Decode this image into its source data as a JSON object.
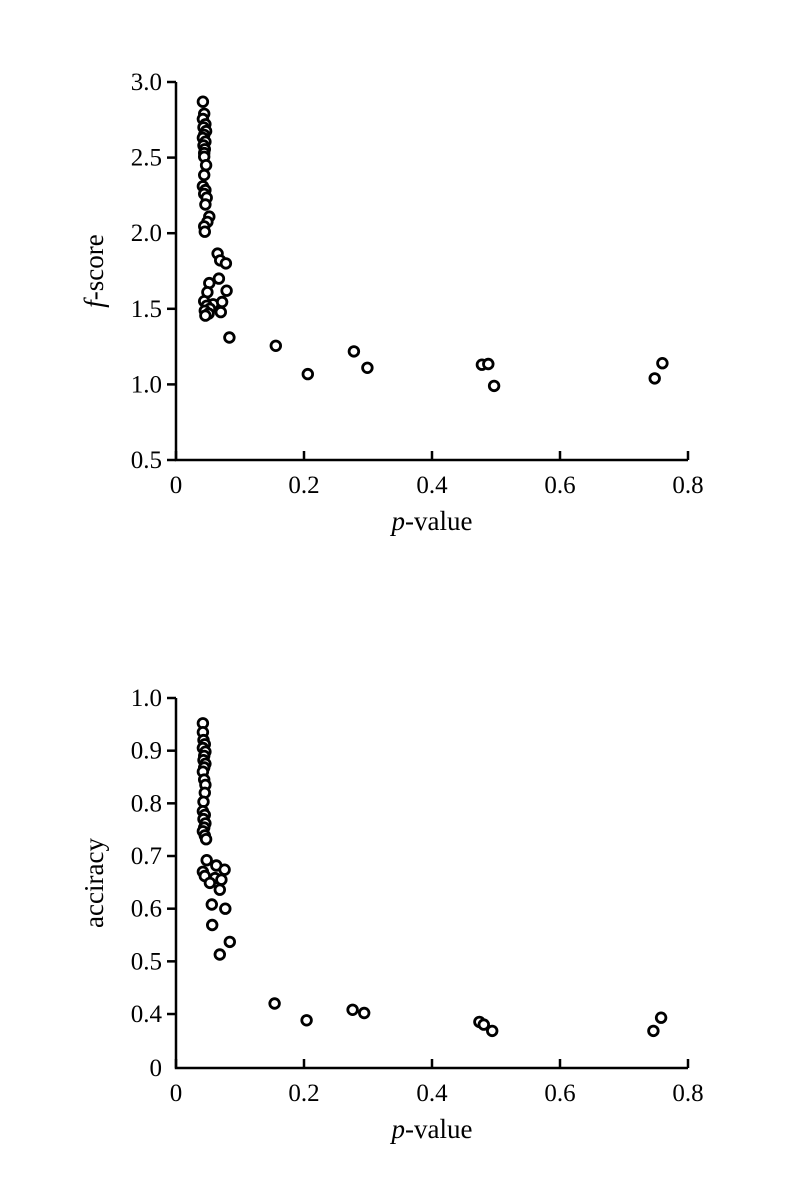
{
  "figure": {
    "background_color": "#ffffff",
    "marker_color": "#000000",
    "axis_color": "#000000"
  },
  "chart_data": [
    {
      "type": "scatter",
      "title": "",
      "xlabel": "p-value",
      "ylabel": "f-score",
      "xlim": [
        0,
        0.8
      ],
      "ylim": [
        0.5,
        3.0
      ],
      "x_tick_labels": [
        "0",
        "0.2",
        "0.4",
        "0.6",
        "0.8"
      ],
      "x_tick_values": [
        0,
        0.2,
        0.4,
        0.6,
        0.8
      ],
      "y_tick_labels": [
        "3.0",
        "2.5",
        "2.0",
        "1.5",
        "1.0",
        "0.5"
      ],
      "y_tick_values": [
        3.0,
        2.5,
        2.0,
        1.5,
        1.0,
        0.5
      ],
      "grid": false,
      "legend": "none",
      "marker": "open-circle",
      "points": [
        [
          0.042,
          2.87
        ],
        [
          0.044,
          2.79
        ],
        [
          0.042,
          2.755
        ],
        [
          0.046,
          2.72
        ],
        [
          0.043,
          2.7
        ],
        [
          0.047,
          2.675
        ],
        [
          0.044,
          2.65
        ],
        [
          0.042,
          2.63
        ],
        [
          0.046,
          2.605
        ],
        [
          0.043,
          2.58
        ],
        [
          0.045,
          2.555
        ],
        [
          0.044,
          2.53
        ],
        [
          0.044,
          2.505
        ],
        [
          0.047,
          2.45
        ],
        [
          0.044,
          2.385
        ],
        [
          0.042,
          2.31
        ],
        [
          0.046,
          2.285
        ],
        [
          0.044,
          2.26
        ],
        [
          0.048,
          2.235
        ],
        [
          0.046,
          2.19
        ],
        [
          0.052,
          2.11
        ],
        [
          0.049,
          2.075
        ],
        [
          0.044,
          2.045
        ],
        [
          0.045,
          2.01
        ],
        [
          0.065,
          1.865
        ],
        [
          0.069,
          1.82
        ],
        [
          0.078,
          1.8
        ],
        [
          0.067,
          1.7
        ],
        [
          0.052,
          1.67
        ],
        [
          0.079,
          1.62
        ],
        [
          0.049,
          1.61
        ],
        [
          0.058,
          1.53
        ],
        [
          0.072,
          1.545
        ],
        [
          0.044,
          1.55
        ],
        [
          0.048,
          1.52
        ],
        [
          0.053,
          1.5
        ],
        [
          0.045,
          1.487
        ],
        [
          0.051,
          1.468
        ],
        [
          0.07,
          1.478
        ],
        [
          0.046,
          1.455
        ],
        [
          0.0835,
          1.31
        ],
        [
          0.156,
          1.255
        ],
        [
          0.206,
          1.068
        ],
        [
          0.278,
          1.218
        ],
        [
          0.299,
          1.11
        ],
        [
          0.478,
          1.13
        ],
        [
          0.488,
          1.135
        ],
        [
          0.497,
          0.99
        ],
        [
          0.748,
          1.04
        ],
        [
          0.76,
          1.14
        ]
      ]
    },
    {
      "type": "scatter",
      "title": "",
      "xlabel": "p-value",
      "ylabel": "acciracy",
      "xlim": [
        0,
        0.8
      ],
      "ylim": [
        0.4,
        1.0
      ],
      "x_tick_labels": [
        "0",
        "0.2",
        "0.4",
        "0.6",
        "0.8"
      ],
      "x_tick_values": [
        0,
        0.2,
        0.4,
        0.6,
        0.8
      ],
      "y_tick_labels": [
        "1.0",
        "0.9",
        "0.8",
        "0.7",
        "0.6",
        "0.5",
        "0.4"
      ],
      "y_tick_values": [
        1.0,
        0.9,
        0.8,
        0.7,
        0.6,
        0.5,
        0.4
      ],
      "y_axis_origin_label": "0",
      "grid": false,
      "legend": "none",
      "marker": "open-circle",
      "points": [
        [
          0.042,
          0.952
        ],
        [
          0.042,
          0.935
        ],
        [
          0.043,
          0.92
        ],
        [
          0.045,
          0.912
        ],
        [
          0.042,
          0.905
        ],
        [
          0.046,
          0.898
        ],
        [
          0.044,
          0.89
        ],
        [
          0.043,
          0.882
        ],
        [
          0.046,
          0.875
        ],
        [
          0.044,
          0.868
        ],
        [
          0.042,
          0.86
        ],
        [
          0.044,
          0.845
        ],
        [
          0.046,
          0.835
        ],
        [
          0.045,
          0.82
        ],
        [
          0.043,
          0.803
        ],
        [
          0.042,
          0.785
        ],
        [
          0.045,
          0.778
        ],
        [
          0.043,
          0.77
        ],
        [
          0.046,
          0.762
        ],
        [
          0.044,
          0.754
        ],
        [
          0.042,
          0.747
        ],
        [
          0.045,
          0.739
        ],
        [
          0.047,
          0.732
        ],
        [
          0.048,
          0.692
        ],
        [
          0.063,
          0.682
        ],
        [
          0.076,
          0.674
        ],
        [
          0.042,
          0.67
        ],
        [
          0.045,
          0.662
        ],
        [
          0.061,
          0.658
        ],
        [
          0.071,
          0.655
        ],
        [
          0.053,
          0.649
        ],
        [
          0.0685,
          0.636
        ],
        [
          0.056,
          0.608
        ],
        [
          0.077,
          0.6
        ],
        [
          0.0565,
          0.569
        ],
        [
          0.084,
          0.537
        ],
        [
          0.0685,
          0.513
        ],
        [
          0.154,
          0.42
        ],
        [
          0.204,
          0.388
        ],
        [
          0.276,
          0.408
        ],
        [
          0.294,
          0.402
        ],
        [
          0.474,
          0.385
        ],
        [
          0.481,
          0.38
        ],
        [
          0.494,
          0.368
        ],
        [
          0.746,
          0.368
        ],
        [
          0.758,
          0.393
        ]
      ]
    }
  ]
}
